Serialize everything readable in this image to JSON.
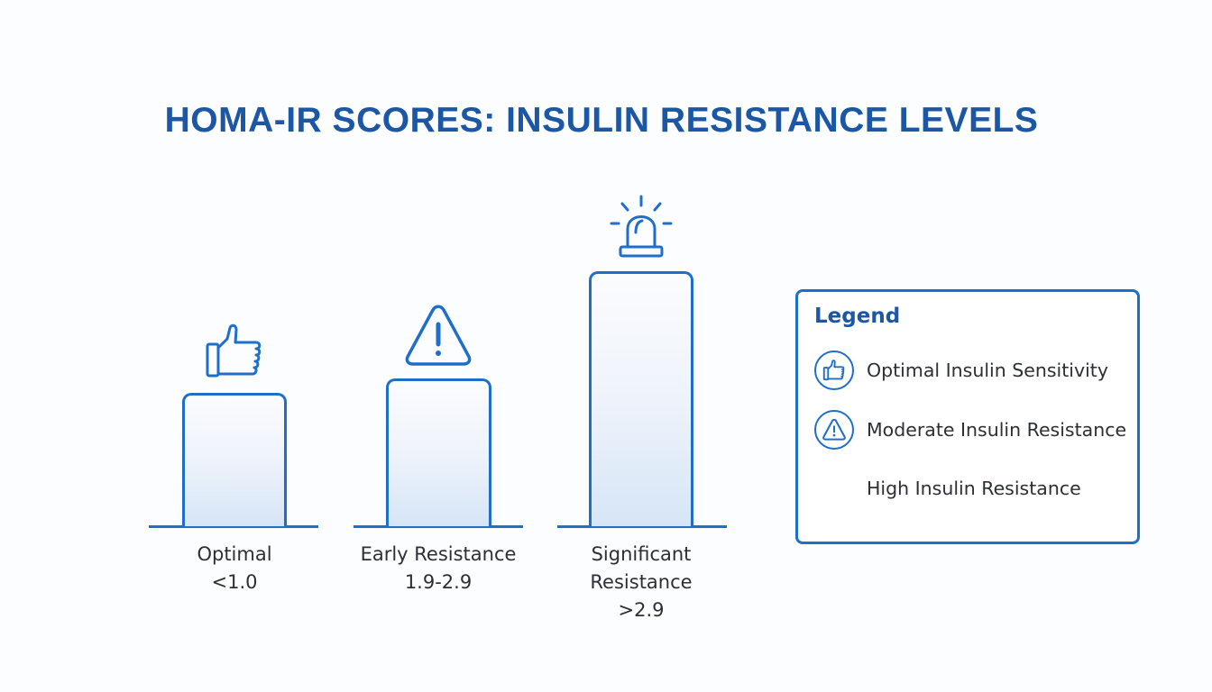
{
  "title": "HOMA-IR SCORES: INSULIN RESISTANCE LEVELS",
  "colors": {
    "accent": "#1f6fc9",
    "title": "#1b57a5",
    "text": "#2b2f36"
  },
  "categories": [
    {
      "label_lines": [
        "Optimal",
        "<1.0"
      ],
      "icon": "thumbs-up-icon"
    },
    {
      "label_lines": [
        "Early Resistance",
        "1.9-2.9"
      ],
      "icon": "warning-triangle-icon"
    },
    {
      "label_lines": [
        "Significant",
        "Resistance",
        ">2.9"
      ],
      "icon": "alarm-siren-icon"
    }
  ],
  "legend": {
    "title": "Legend",
    "items": [
      {
        "label": "Optimal Insulin Sensitivity",
        "icon": "thumbs-up-icon"
      },
      {
        "label": "Moderate Insulin Resistance",
        "icon": "warning-triangle-icon"
      },
      {
        "label": "High Insulin Resistance",
        "icon": "none"
      }
    ]
  }
}
